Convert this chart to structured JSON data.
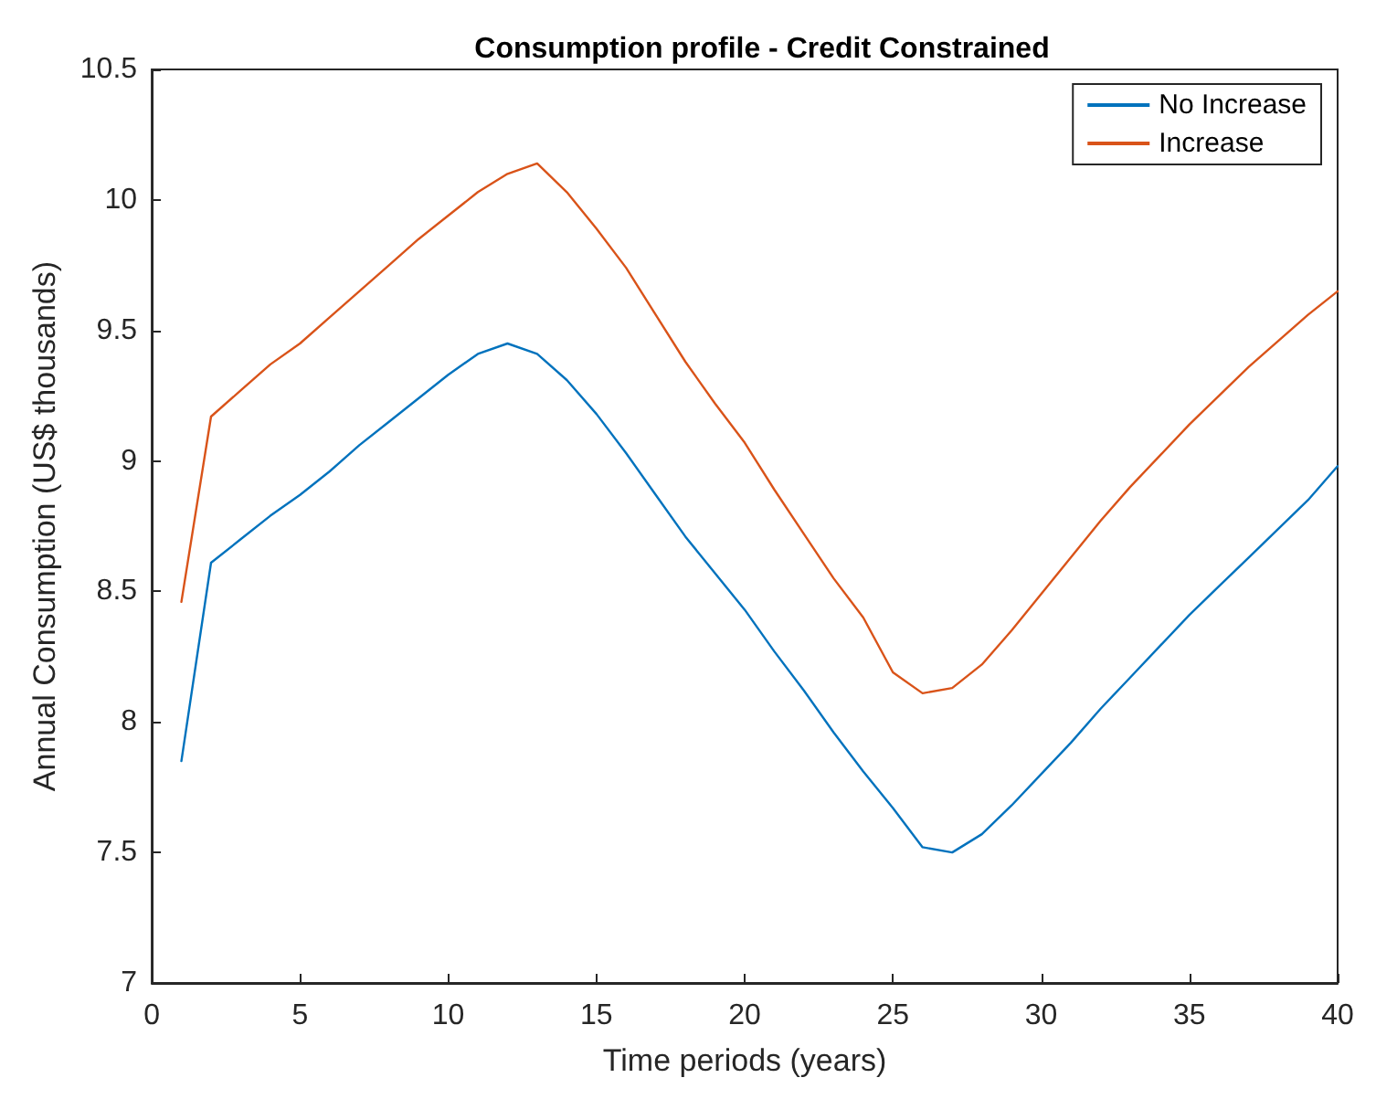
{
  "chart_data": {
    "type": "line",
    "title": "Consumption profile - Credit Constrained",
    "xlabel": "Time periods (years)",
    "ylabel": "Annual Consumption (US$ thousands)",
    "x": [
      1,
      2,
      3,
      4,
      5,
      6,
      7,
      8,
      9,
      10,
      11,
      12,
      13,
      14,
      15,
      16,
      17,
      18,
      19,
      20,
      21,
      22,
      23,
      24,
      25,
      26,
      27,
      28,
      29,
      30,
      31,
      32,
      33,
      34,
      35,
      36,
      37,
      38,
      39,
      40
    ],
    "series": [
      {
        "name": "No Increase",
        "color": "#0072bd",
        "values": [
          7.85,
          8.61,
          8.7,
          8.79,
          8.87,
          8.96,
          9.06,
          9.15,
          9.24,
          9.33,
          9.41,
          9.45,
          9.41,
          9.31,
          9.18,
          9.03,
          8.87,
          8.71,
          8.57,
          8.43,
          8.27,
          8.12,
          7.96,
          7.81,
          7.67,
          7.52,
          7.5,
          7.57,
          7.68,
          7.8,
          7.92,
          8.05,
          8.17,
          8.29,
          8.41,
          8.52,
          8.63,
          8.74,
          8.85,
          8.98
        ]
      },
      {
        "name": "Increase",
        "color": "#d95319",
        "values": [
          8.46,
          9.17,
          9.27,
          9.37,
          9.45,
          9.55,
          9.65,
          9.75,
          9.85,
          9.94,
          10.03,
          10.1,
          10.14,
          10.03,
          9.89,
          9.74,
          9.56,
          9.38,
          9.22,
          9.07,
          8.89,
          8.72,
          8.55,
          8.4,
          8.19,
          8.11,
          8.13,
          8.22,
          8.35,
          8.49,
          8.63,
          8.77,
          8.9,
          9.02,
          9.14,
          9.25,
          9.36,
          9.46,
          9.56,
          9.65
        ]
      }
    ],
    "xlim": [
      0,
      40
    ],
    "xticks": [
      0,
      5,
      10,
      15,
      20,
      25,
      30,
      35,
      40
    ],
    "ylim": [
      7,
      10.5
    ],
    "yticks": [
      7,
      7.5,
      8,
      8.5,
      9,
      9.5,
      10,
      10.5
    ],
    "grid": false,
    "legend": "top right",
    "line_style": "solid",
    "marker": "none"
  }
}
